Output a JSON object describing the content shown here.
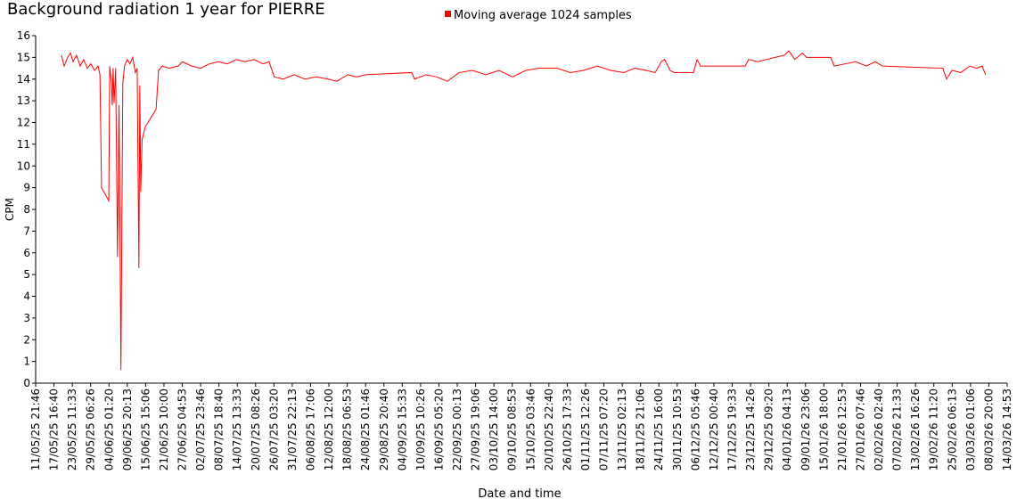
{
  "chart_data": {
    "type": "line",
    "title": "Background radiation 1 year for PIERRE",
    "xlabel": "Date and time",
    "ylabel": "CPM",
    "legend": "top",
    "grid": false,
    "ylim": [
      0,
      16
    ],
    "yticks": [
      0,
      1,
      2,
      3,
      4,
      5,
      6,
      7,
      8,
      9,
      10,
      11,
      12,
      13,
      14,
      15,
      16
    ],
    "xlim": [
      "2025-05-11T21:46",
      "2026-03-14T14:53"
    ],
    "xticks": [
      {
        "value": "2025-05-11T21:46",
        "label": "11/05/25 21:46"
      },
      {
        "value": "2025-05-17T16:40",
        "label": "17/05/25 16:40"
      },
      {
        "value": "2025-05-23T11:33",
        "label": "23/05/25 11:33"
      },
      {
        "value": "2025-05-29T06:26",
        "label": "29/05/25 06:26"
      },
      {
        "value": "2025-06-04T01:20",
        "label": "04/06/25 01:20"
      },
      {
        "value": "2025-06-09T20:13",
        "label": "09/06/25 20:13"
      },
      {
        "value": "2025-06-15T15:06",
        "label": "15/06/25 15:06"
      },
      {
        "value": "2025-06-21T10:00",
        "label": "21/06/25 10:00"
      },
      {
        "value": "2025-06-27T04:53",
        "label": "27/06/25 04:53"
      },
      {
        "value": "2025-07-02T23:46",
        "label": "02/07/25 23:46"
      },
      {
        "value": "2025-07-08T18:40",
        "label": "08/07/25 18:40"
      },
      {
        "value": "2025-07-14T13:33",
        "label": "14/07/25 13:33"
      },
      {
        "value": "2025-07-20T08:26",
        "label": "20/07/25 08:26"
      },
      {
        "value": "2025-07-26T03:20",
        "label": "26/07/25 03:20"
      },
      {
        "value": "2025-07-31T22:13",
        "label": "31/07/25 22:13"
      },
      {
        "value": "2025-08-06T17:06",
        "label": "06/08/25 17:06"
      },
      {
        "value": "2025-08-12T12:00",
        "label": "12/08/25 12:00"
      },
      {
        "value": "2025-08-18T06:53",
        "label": "18/08/25 06:53"
      },
      {
        "value": "2025-08-24T01:46",
        "label": "24/08/25 01:46"
      },
      {
        "value": "2025-08-29T20:40",
        "label": "29/08/25 20:40"
      },
      {
        "value": "2025-09-04T15:33",
        "label": "04/09/25 15:33"
      },
      {
        "value": "2025-09-10T10:26",
        "label": "10/09/25 10:26"
      },
      {
        "value": "2025-09-16T05:20",
        "label": "16/09/25 05:20"
      },
      {
        "value": "2025-09-22T00:13",
        "label": "22/09/25 00:13"
      },
      {
        "value": "2025-09-27T19:06",
        "label": "27/09/25 19:06"
      },
      {
        "value": "2025-10-03T14:00",
        "label": "03/10/25 14:00"
      },
      {
        "value": "2025-10-09T08:53",
        "label": "09/10/25 08:53"
      },
      {
        "value": "2025-10-15T03:46",
        "label": "15/10/25 03:46"
      },
      {
        "value": "2025-10-20T22:40",
        "label": "20/10/25 22:40"
      },
      {
        "value": "2025-10-26T17:33",
        "label": "26/10/25 17:33"
      },
      {
        "value": "2025-11-01T12:26",
        "label": "01/11/25 12:26"
      },
      {
        "value": "2025-11-07T07:20",
        "label": "07/11/25 07:20"
      },
      {
        "value": "2025-11-13T02:13",
        "label": "13/11/25 02:13"
      },
      {
        "value": "2025-11-18T21:06",
        "label": "18/11/25 21:06"
      },
      {
        "value": "2025-11-24T16:00",
        "label": "24/11/25 16:00"
      },
      {
        "value": "2025-11-30T10:53",
        "label": "30/11/25 10:53"
      },
      {
        "value": "2025-12-06T05:46",
        "label": "06/12/25 05:46"
      },
      {
        "value": "2025-12-12T00:40",
        "label": "12/12/25 00:40"
      },
      {
        "value": "2025-12-17T19:33",
        "label": "17/12/25 19:33"
      },
      {
        "value": "2025-12-23T14:26",
        "label": "23/12/25 14:26"
      },
      {
        "value": "2025-12-29T09:20",
        "label": "29/12/25 09:20"
      },
      {
        "value": "2026-01-04T04:13",
        "label": "04/01/26 04:13"
      },
      {
        "value": "2026-01-09T23:06",
        "label": "09/01/26 23:06"
      },
      {
        "value": "2026-01-15T18:00",
        "label": "15/01/26 18:00"
      },
      {
        "value": "2026-01-21T12:53",
        "label": "21/01/26 12:53"
      },
      {
        "value": "2026-01-27T07:46",
        "label": "27/01/26 07:46"
      },
      {
        "value": "2026-02-02T02:40",
        "label": "02/02/26 02:40"
      },
      {
        "value": "2026-02-07T21:33",
        "label": "07/02/26 21:33"
      },
      {
        "value": "2026-02-13T16:26",
        "label": "13/02/26 16:26"
      },
      {
        "value": "2026-02-19T11:20",
        "label": "19/02/26 11:20"
      },
      {
        "value": "2026-02-25T06:13",
        "label": "25/02/26 06:13"
      },
      {
        "value": "2026-03-03T01:06",
        "label": "03/03/26 01:06"
      },
      {
        "value": "2026-03-08T20:00",
        "label": "08/03/26 20:00"
      },
      {
        "value": "2026-03-14T14:53",
        "label": "14/03/26 14:53"
      }
    ],
    "x": [
      "2025-05-20T01:00",
      "2025-05-20T22:00",
      "2025-05-22T00:00",
      "2025-05-22T22:00",
      "2025-05-23T17:00",
      "2025-05-24T19:00",
      "2025-05-26T00:00",
      "2025-05-27T02:00",
      "2025-05-28T05:00",
      "2025-05-29T08:00",
      "2025-05-30T12:00",
      "2025-05-31T15:00",
      "2025-06-01T05:00",
      "2025-06-01T17:00",
      "2025-06-04T00:00",
      "2025-06-04T07:00",
      "2025-06-04T19:00",
      "2025-06-05T02:00",
      "2025-06-05T09:00",
      "2025-06-05T16:00",
      "2025-06-06T04:00",
      "2025-06-06T18:00",
      "2025-06-07T06:00",
      "2025-06-07T20:00",
      "2025-06-08T10:00",
      "2025-06-08T23:00",
      "2025-06-09T20:00",
      "2025-06-10T16:00",
      "2025-06-11T13:00",
      "2025-06-12T09:00",
      "2025-06-12T23:00",
      "2025-06-13T12:00",
      "2025-06-13T19:00",
      "2025-06-14T02:00",
      "2025-06-14T12:00",
      "2025-06-15T12:00",
      "2025-06-18T22:00",
      "2025-06-19T17:00",
      "2025-06-20T22:00",
      "2025-06-23T02:00",
      "2025-06-25T22:00",
      "2025-06-27T06:00",
      "2025-06-30T03:00",
      "2025-07-03T00:00",
      "2025-07-05T19:00",
      "2025-07-08T14:00",
      "2025-07-11T10:00",
      "2025-07-14T05:00",
      "2025-07-17T00:00",
      "2025-07-19T21:00",
      "2025-07-22T16:00",
      "2025-07-24T14:00",
      "2025-07-26T06:00",
      "2025-07-29T02:00",
      "2025-08-01T12:00",
      "2025-08-04T22:00",
      "2025-08-08T12:00",
      "2025-08-12T05:00",
      "2025-08-15T00:00",
      "2025-08-18T10:00",
      "2025-08-21T05:00",
      "2025-08-24T00:00",
      "2025-09-07T15:00",
      "2025-09-08T12:00",
      "2025-09-12T03:00",
      "2025-09-15T12:00",
      "2025-09-18T22:00",
      "2025-09-22T15:00",
      "2025-09-26T19:00",
      "2025-10-01T00:00",
      "2025-10-05T05:00",
      "2025-10-09T10:00",
      "2025-10-13T17:00",
      "2025-10-17T22:00",
      "2025-10-23T12:00",
      "2025-10-27T17:00",
      "2025-10-31T22:00",
      "2025-11-05T05:00",
      "2025-11-09T10:00",
      "2025-11-13T15:00",
      "2025-11-17T00:00",
      "2025-11-20T14:00",
      "2025-11-23T12:00",
      "2025-11-25T10:00",
      "2025-11-26T12:00",
      "2025-11-28T05:00",
      "2025-11-29T10:00",
      "2025-12-05T14:00",
      "2025-12-06T17:00",
      "2025-12-07T19:00",
      "2025-12-21T22:00",
      "2025-12-23T00:00",
      "2025-12-25T19:00",
      "2025-12-28T14:00",
      "2025-12-31T10:00",
      "2026-01-03T07:00",
      "2026-01-04T17:00",
      "2026-01-06T14:00",
      "2026-01-08T22:00",
      "2026-01-10T07:00",
      "2026-01-17T22:00",
      "2026-01-19T00:00",
      "2026-01-22T10:00",
      "2026-01-25T19:00",
      "2026-01-29T03:00",
      "2026-02-01T00:00",
      "2026-02-03T05:00",
      "2026-02-22T07:00",
      "2026-02-23T12:00",
      "2026-02-25T05:00",
      "2026-02-28T00:00",
      "2026-03-02T19:00",
      "2026-03-05T00:00",
      "2026-03-06T17:00",
      "2026-03-07T19:00"
    ],
    "series": [
      {
        "name": "Moving average 1024 samples",
        "color": "#ff0000",
        "values": [
          15.1,
          14.6,
          15.0,
          15.2,
          14.8,
          15.1,
          14.6,
          14.9,
          14.5,
          14.7,
          14.4,
          14.6,
          14.2,
          9.0,
          8.4,
          14.6,
          13.9,
          12.8,
          14.5,
          12.9,
          14.5,
          5.8,
          12.8,
          0.6,
          13.8,
          14.6,
          14.9,
          14.7,
          15.0,
          14.3,
          14.5,
          5.3,
          13.7,
          8.8,
          11.2,
          11.8,
          12.6,
          14.4,
          14.6,
          14.5,
          14.6,
          14.8,
          14.6,
          14.5,
          14.7,
          14.8,
          14.7,
          14.9,
          14.8,
          14.9,
          14.7,
          14.8,
          14.1,
          14.0,
          14.2,
          14.0,
          14.1,
          14.0,
          13.9,
          14.2,
          14.1,
          14.2,
          14.3,
          14.0,
          14.2,
          14.1,
          13.9,
          14.3,
          14.4,
          14.2,
          14.4,
          14.1,
          14.4,
          14.5,
          14.5,
          14.3,
          14.4,
          14.6,
          14.4,
          14.3,
          14.5,
          14.4,
          14.3,
          14.8,
          14.9,
          14.4,
          14.3,
          14.3,
          14.9,
          14.6,
          14.6,
          14.9,
          14.8,
          14.9,
          15.0,
          15.1,
          15.3,
          14.9,
          15.2,
          15.0,
          15.0,
          14.6,
          14.7,
          14.8,
          14.6,
          14.8,
          14.6,
          14.5,
          14.0,
          14.4,
          14.3,
          14.6,
          14.5,
          14.6,
          14.2
        ]
      }
    ]
  }
}
